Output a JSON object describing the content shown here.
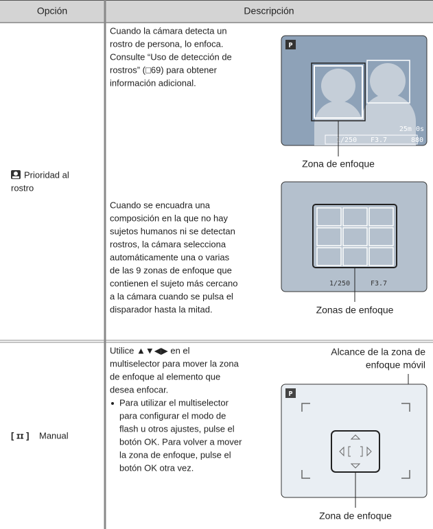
{
  "header": {
    "option": "Opción",
    "description": "Descripción"
  },
  "rows": [
    {
      "option": [
        "Prioridad al",
        "rostro"
      ],
      "blocks": [
        {
          "lines": [
            "Cuando la cámara detecta un",
            "rostro de persona, lo enfoca.",
            "Consulte “Uso de detección de",
            "rostros” (□69) para obtener",
            "información adicional."
          ],
          "screen": {
            "mode": "P",
            "remaining": "25m 0s",
            "shutter": "1/250",
            "aperture": "F3.7",
            "shots": "880"
          },
          "caption": "Zona de enfoque"
        },
        {
          "lines": [
            "Cuando se encuadra una",
            "composición en la que no hay",
            "sujetos humanos ni se detectan",
            "rostros, la cámara selecciona",
            "automáticamente una o varias",
            "de las 9 zonas de enfoque que",
            "contienen el sujeto más cercano",
            "a la cámara cuando se pulsa el",
            "disparador hasta la mitad."
          ],
          "screen": {
            "shutter": "1/250",
            "aperture": "F3.7"
          },
          "caption": "Zonas de enfoque"
        }
      ]
    },
    {
      "option": [
        "Manual"
      ],
      "blocks": [
        {
          "lines": [
            "Utilice ▲▼◀▶ en el",
            "multiselector para mover la zona",
            "de enfoque al elemento que",
            "desea enfocar."
          ],
          "bullet": [
            "Para utilizar el multiselector",
            "para configurar el modo de",
            "flash u otros ajustes, pulse el",
            "botón OK. Para volver a mover",
            "la zona de enfoque, pulse el",
            "botón OK otra vez."
          ],
          "screen": {
            "mode": "P"
          },
          "caption_top": [
            "Alcance de la zona de",
            "enfoque móvil"
          ],
          "caption": "Zona de enfoque"
        }
      ]
    }
  ]
}
